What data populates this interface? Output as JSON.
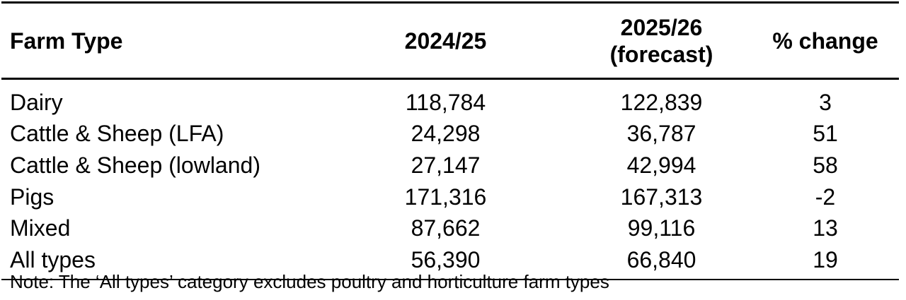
{
  "table": {
    "headers": {
      "farm_type": "Farm Type",
      "year1": "2024/25",
      "year2_line1": "2025/26",
      "year2_line2": "(forecast)",
      "change": "% change"
    },
    "rows": [
      {
        "farm_type": "Dairy",
        "year1": "118,784",
        "year2": "122,839",
        "change": "3"
      },
      {
        "farm_type": "Cattle & Sheep (LFA)",
        "year1": "24,298",
        "year2": "36,787",
        "change": "51"
      },
      {
        "farm_type": "Cattle & Sheep (lowland)",
        "year1": "27,147",
        "year2": "42,994",
        "change": "58"
      },
      {
        "farm_type": "Pigs",
        "year1": "171,316",
        "year2": "167,313",
        "change": "-2"
      },
      {
        "farm_type": "Mixed",
        "year1": "87,662",
        "year2": "99,116",
        "change": "13"
      },
      {
        "farm_type": "All types",
        "year1": "56,390",
        "year2": "66,840",
        "change": "19"
      }
    ]
  },
  "note": "Note: The ‘All types’ category excludes poultry and horticulture farm types"
}
